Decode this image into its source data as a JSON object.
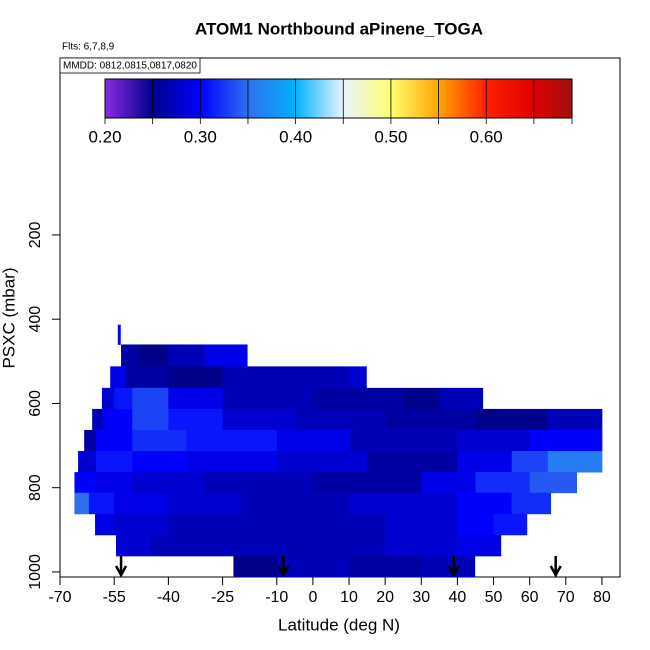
{
  "chart_data": {
    "type": "curtain",
    "title": "ATOM1 Northbound aPinene_TOGA",
    "subtitle": "Flts: 6,7,8,9",
    "legend_text": "MMDD: 0812,0815,0817,0820",
    "xlabel": "Latitude (deg N)",
    "ylabel": "PSXC (mbar)",
    "xlim": [
      -70,
      85
    ],
    "xticks": [
      -70,
      -55,
      -40,
      -25,
      -10,
      0,
      10,
      20,
      30,
      40,
      50,
      60,
      70,
      80
    ],
    "ylim": [
      -220,
      1012
    ],
    "yticks": [
      200,
      400,
      600,
      800,
      1000
    ],
    "colorbar": {
      "lim": [
        0.2,
        0.69
      ],
      "stops": [
        0.2,
        0.25,
        0.3,
        0.35,
        0.4,
        0.45,
        0.5,
        0.55,
        0.6,
        0.65,
        0.69
      ],
      "colors": [
        "#8a2be2",
        "#00008b",
        "#0000ff",
        "#2f6fef",
        "#00b2ff",
        "#e8f4ff",
        "#ffff70",
        "#ffa500",
        "#ff2000",
        "#e00000",
        "#a01010"
      ],
      "ticks": [
        {
          "value": 0.2,
          "label": "0.20"
        },
        {
          "value": 0.3,
          "label": "0.30"
        },
        {
          "value": 0.4,
          "label": "0.40"
        },
        {
          "value": 0.5,
          "label": "0.50"
        },
        {
          "value": 0.6,
          "label": "0.60"
        }
      ]
    },
    "rows": [
      {
        "p": [
          413,
          460
        ],
        "lat": [
          -54,
          -53.3
        ],
        "values": [
          0.3
        ]
      },
      {
        "p": [
          460,
          512
        ],
        "lat": [
          -53.1,
          -48,
          -40,
          -30,
          -18.2
        ],
        "values": [
          0.26,
          0.25,
          0.27,
          0.29
        ]
      },
      {
        "p": [
          512,
          563
        ],
        "lat": [
          -56.1,
          -52,
          -40,
          -25,
          -5,
          10,
          14.8
        ],
        "values": [
          0.29,
          0.26,
          0.25,
          0.27,
          0.27,
          0.28
        ]
      },
      {
        "p": [
          563,
          613
        ],
        "lat": [
          -58.4,
          -55,
          -50,
          -40,
          -25,
          0,
          25,
          35,
          47
        ],
        "values": [
          0.28,
          0.31,
          0.33,
          0.29,
          0.27,
          0.26,
          0.25,
          0.27
        ]
      },
      {
        "p": [
          613,
          663
        ],
        "lat": [
          -61.1,
          -58,
          -50,
          -40,
          -25,
          -5,
          20,
          45,
          65,
          80
        ],
        "values": [
          0.27,
          0.3,
          0.33,
          0.31,
          0.28,
          0.27,
          0.26,
          0.25,
          0.27
        ]
      },
      {
        "p": [
          663,
          713
        ],
        "lat": [
          -63.3,
          -60,
          -50,
          -35,
          -10,
          10,
          40,
          60,
          80
        ],
        "values": [
          0.26,
          0.3,
          0.32,
          0.31,
          0.29,
          0.27,
          0.28,
          0.3
        ]
      },
      {
        "p": [
          713,
          763
        ],
        "lat": [
          -65,
          -60,
          -50,
          -35,
          -10,
          15,
          40,
          55,
          65,
          80
        ],
        "values": [
          0.28,
          0.31,
          0.3,
          0.29,
          0.28,
          0.26,
          0.29,
          0.33,
          0.36
        ]
      },
      {
        "p": [
          763,
          812
        ],
        "lat": [
          -66,
          -60,
          -50,
          -30,
          0,
          30,
          45,
          60,
          73
        ],
        "values": [
          0.3,
          0.29,
          0.28,
          0.27,
          0.26,
          0.29,
          0.32,
          0.34
        ]
      },
      {
        "p": [
          812,
          862
        ],
        "lat": [
          -66,
          -62,
          -55,
          -40,
          -20,
          10,
          40,
          55,
          65.8
        ],
        "values": [
          0.35,
          0.31,
          0.29,
          0.28,
          0.27,
          0.28,
          0.3,
          0.32
        ]
      },
      {
        "p": [
          862,
          912
        ],
        "lat": [
          -60.3,
          -55,
          -40,
          -10,
          20,
          40,
          50,
          59.2
        ],
        "values": [
          0.29,
          0.28,
          0.27,
          0.27,
          0.28,
          0.3,
          0.31
        ]
      },
      {
        "p": [
          912,
          962
        ],
        "lat": [
          -54.5,
          -45,
          -10,
          20,
          40,
          52
        ],
        "values": [
          0.28,
          0.27,
          0.27,
          0.28,
          0.29
        ]
      },
      {
        "p": [
          962,
          1012
        ],
        "lat": [
          -22,
          -10,
          10,
          30,
          44.8
        ],
        "values": [
          0.25,
          0.27,
          0.26,
          0.27
        ]
      }
    ],
    "arrows": [
      -53.1,
      -8.2,
      39,
      67.2
    ]
  }
}
